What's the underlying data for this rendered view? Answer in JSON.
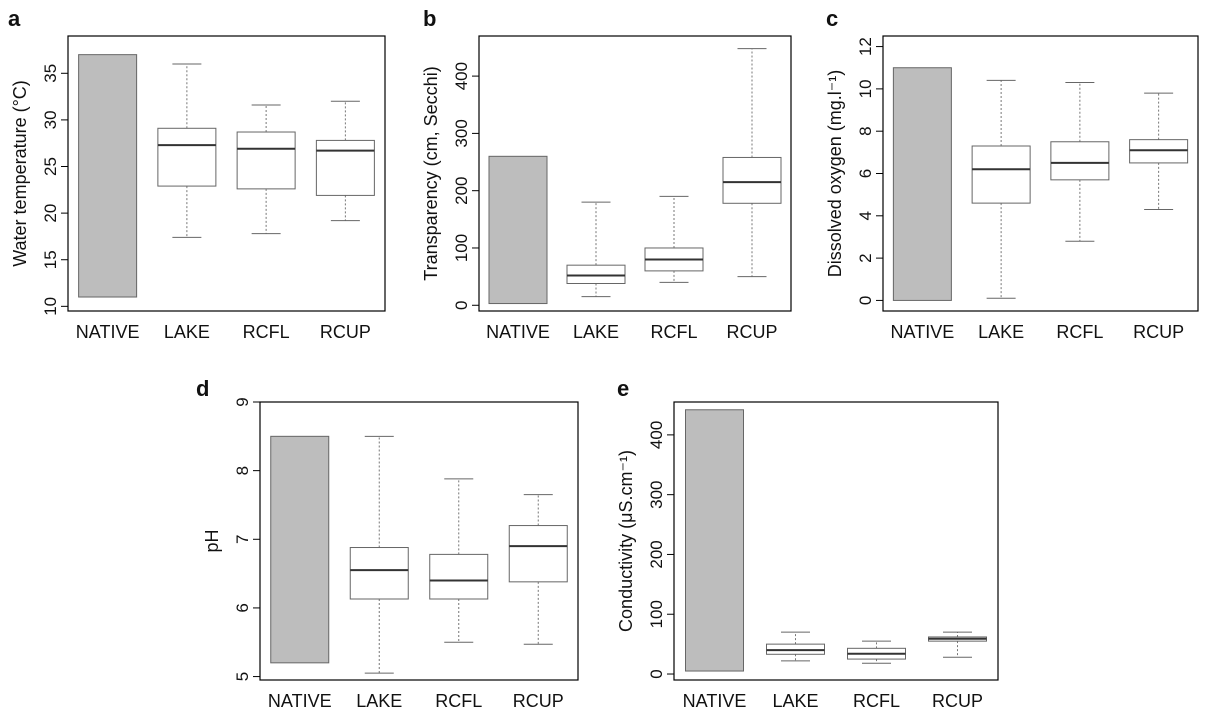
{
  "figure": {
    "categories": [
      "NATIVE",
      "LAKE",
      "RCFL",
      "RCUP"
    ],
    "colors": {
      "native_fill": "#bdbdbd",
      "box_stroke": "#666666",
      "median": "#333333",
      "frame": "#000000",
      "whisker": "#777777"
    }
  },
  "chart_data": [
    {
      "panel": "a",
      "type": "boxplot",
      "ylabel": "Water temperature (°C)",
      "ylim": [
        9.5,
        39
      ],
      "yticks": [
        10,
        15,
        20,
        25,
        30,
        35
      ],
      "categories": [
        "NATIVE",
        "LAKE",
        "RCFL",
        "RCUP"
      ],
      "native_range": [
        11.0,
        37.0
      ],
      "boxes": [
        {
          "category": "LAKE",
          "whisker_low": 17.4,
          "q1": 22.9,
          "median": 27.3,
          "q3": 29.1,
          "whisker_high": 36.0
        },
        {
          "category": "RCFL",
          "whisker_low": 17.8,
          "q1": 22.6,
          "median": 26.9,
          "q3": 28.7,
          "whisker_high": 31.6
        },
        {
          "category": "RCUP",
          "whisker_low": 19.2,
          "q1": 21.9,
          "median": 26.7,
          "q3": 27.8,
          "whisker_high": 32.0
        }
      ],
      "grid": false
    },
    {
      "panel": "b",
      "type": "boxplot",
      "ylabel": "Transparency (cm, Secchi)",
      "ylim": [
        -10,
        470
      ],
      "yticks": [
        0,
        100,
        200,
        300,
        400
      ],
      "categories": [
        "NATIVE",
        "LAKE",
        "RCFL",
        "RCUP"
      ],
      "native_range": [
        3,
        260
      ],
      "boxes": [
        {
          "category": "LAKE",
          "whisker_low": 15,
          "q1": 38,
          "median": 52,
          "q3": 70,
          "whisker_high": 180
        },
        {
          "category": "RCFL",
          "whisker_low": 40,
          "q1": 60,
          "median": 80,
          "q3": 100,
          "whisker_high": 190
        },
        {
          "category": "RCUP",
          "whisker_low": 50,
          "q1": 178,
          "median": 215,
          "q3": 258,
          "whisker_high": 448
        }
      ],
      "grid": false
    },
    {
      "panel": "c",
      "type": "boxplot",
      "ylabel": "Dissolved oxygen (mg.l⁻¹)",
      "ylim": [
        -0.5,
        12.5
      ],
      "yticks": [
        0,
        2,
        4,
        6,
        8,
        10,
        12
      ],
      "categories": [
        "NATIVE",
        "LAKE",
        "RCFL",
        "RCUP"
      ],
      "native_range": [
        0,
        11.0
      ],
      "boxes": [
        {
          "category": "LAKE",
          "whisker_low": 0.1,
          "q1": 4.6,
          "median": 6.2,
          "q3": 7.3,
          "whisker_high": 10.4
        },
        {
          "category": "RCFL",
          "whisker_low": 2.8,
          "q1": 5.7,
          "median": 6.5,
          "q3": 7.5,
          "whisker_high": 10.3
        },
        {
          "category": "RCUP",
          "whisker_low": 4.3,
          "q1": 6.5,
          "median": 7.1,
          "q3": 7.6,
          "whisker_high": 9.8
        }
      ],
      "grid": false
    },
    {
      "panel": "d",
      "type": "boxplot",
      "ylabel": "pH",
      "ylim": [
        4.95,
        9.0
      ],
      "yticks": [
        5,
        6,
        7,
        8,
        9
      ],
      "categories": [
        "NATIVE",
        "LAKE",
        "RCFL",
        "RCUP"
      ],
      "native_range": [
        5.2,
        8.5
      ],
      "boxes": [
        {
          "category": "LAKE",
          "whisker_low": 5.05,
          "q1": 6.13,
          "median": 6.55,
          "q3": 6.88,
          "whisker_high": 8.5
        },
        {
          "category": "RCFL",
          "whisker_low": 5.5,
          "q1": 6.13,
          "median": 6.4,
          "q3": 6.78,
          "whisker_high": 7.88
        },
        {
          "category": "RCUP",
          "whisker_low": 5.47,
          "q1": 6.38,
          "median": 6.9,
          "q3": 7.2,
          "whisker_high": 7.65
        }
      ],
      "grid": false
    },
    {
      "panel": "e",
      "type": "boxplot",
      "ylabel": "Conductivity (μS.cm⁻¹)",
      "ylim": [
        -10,
        455
      ],
      "yticks": [
        0,
        100,
        200,
        300,
        400
      ],
      "categories": [
        "NATIVE",
        "LAKE",
        "RCFL",
        "RCUP"
      ],
      "native_range": [
        5,
        442
      ],
      "boxes": [
        {
          "category": "LAKE",
          "whisker_low": 22,
          "q1": 33,
          "median": 40,
          "q3": 50,
          "whisker_high": 70
        },
        {
          "category": "RCFL",
          "whisker_low": 18,
          "q1": 25,
          "median": 34,
          "q3": 43,
          "whisker_high": 55
        },
        {
          "category": "RCUP",
          "whisker_low": 28,
          "q1": 55,
          "median": 59,
          "q3": 62,
          "whisker_high": 70
        }
      ],
      "grid": false
    }
  ]
}
